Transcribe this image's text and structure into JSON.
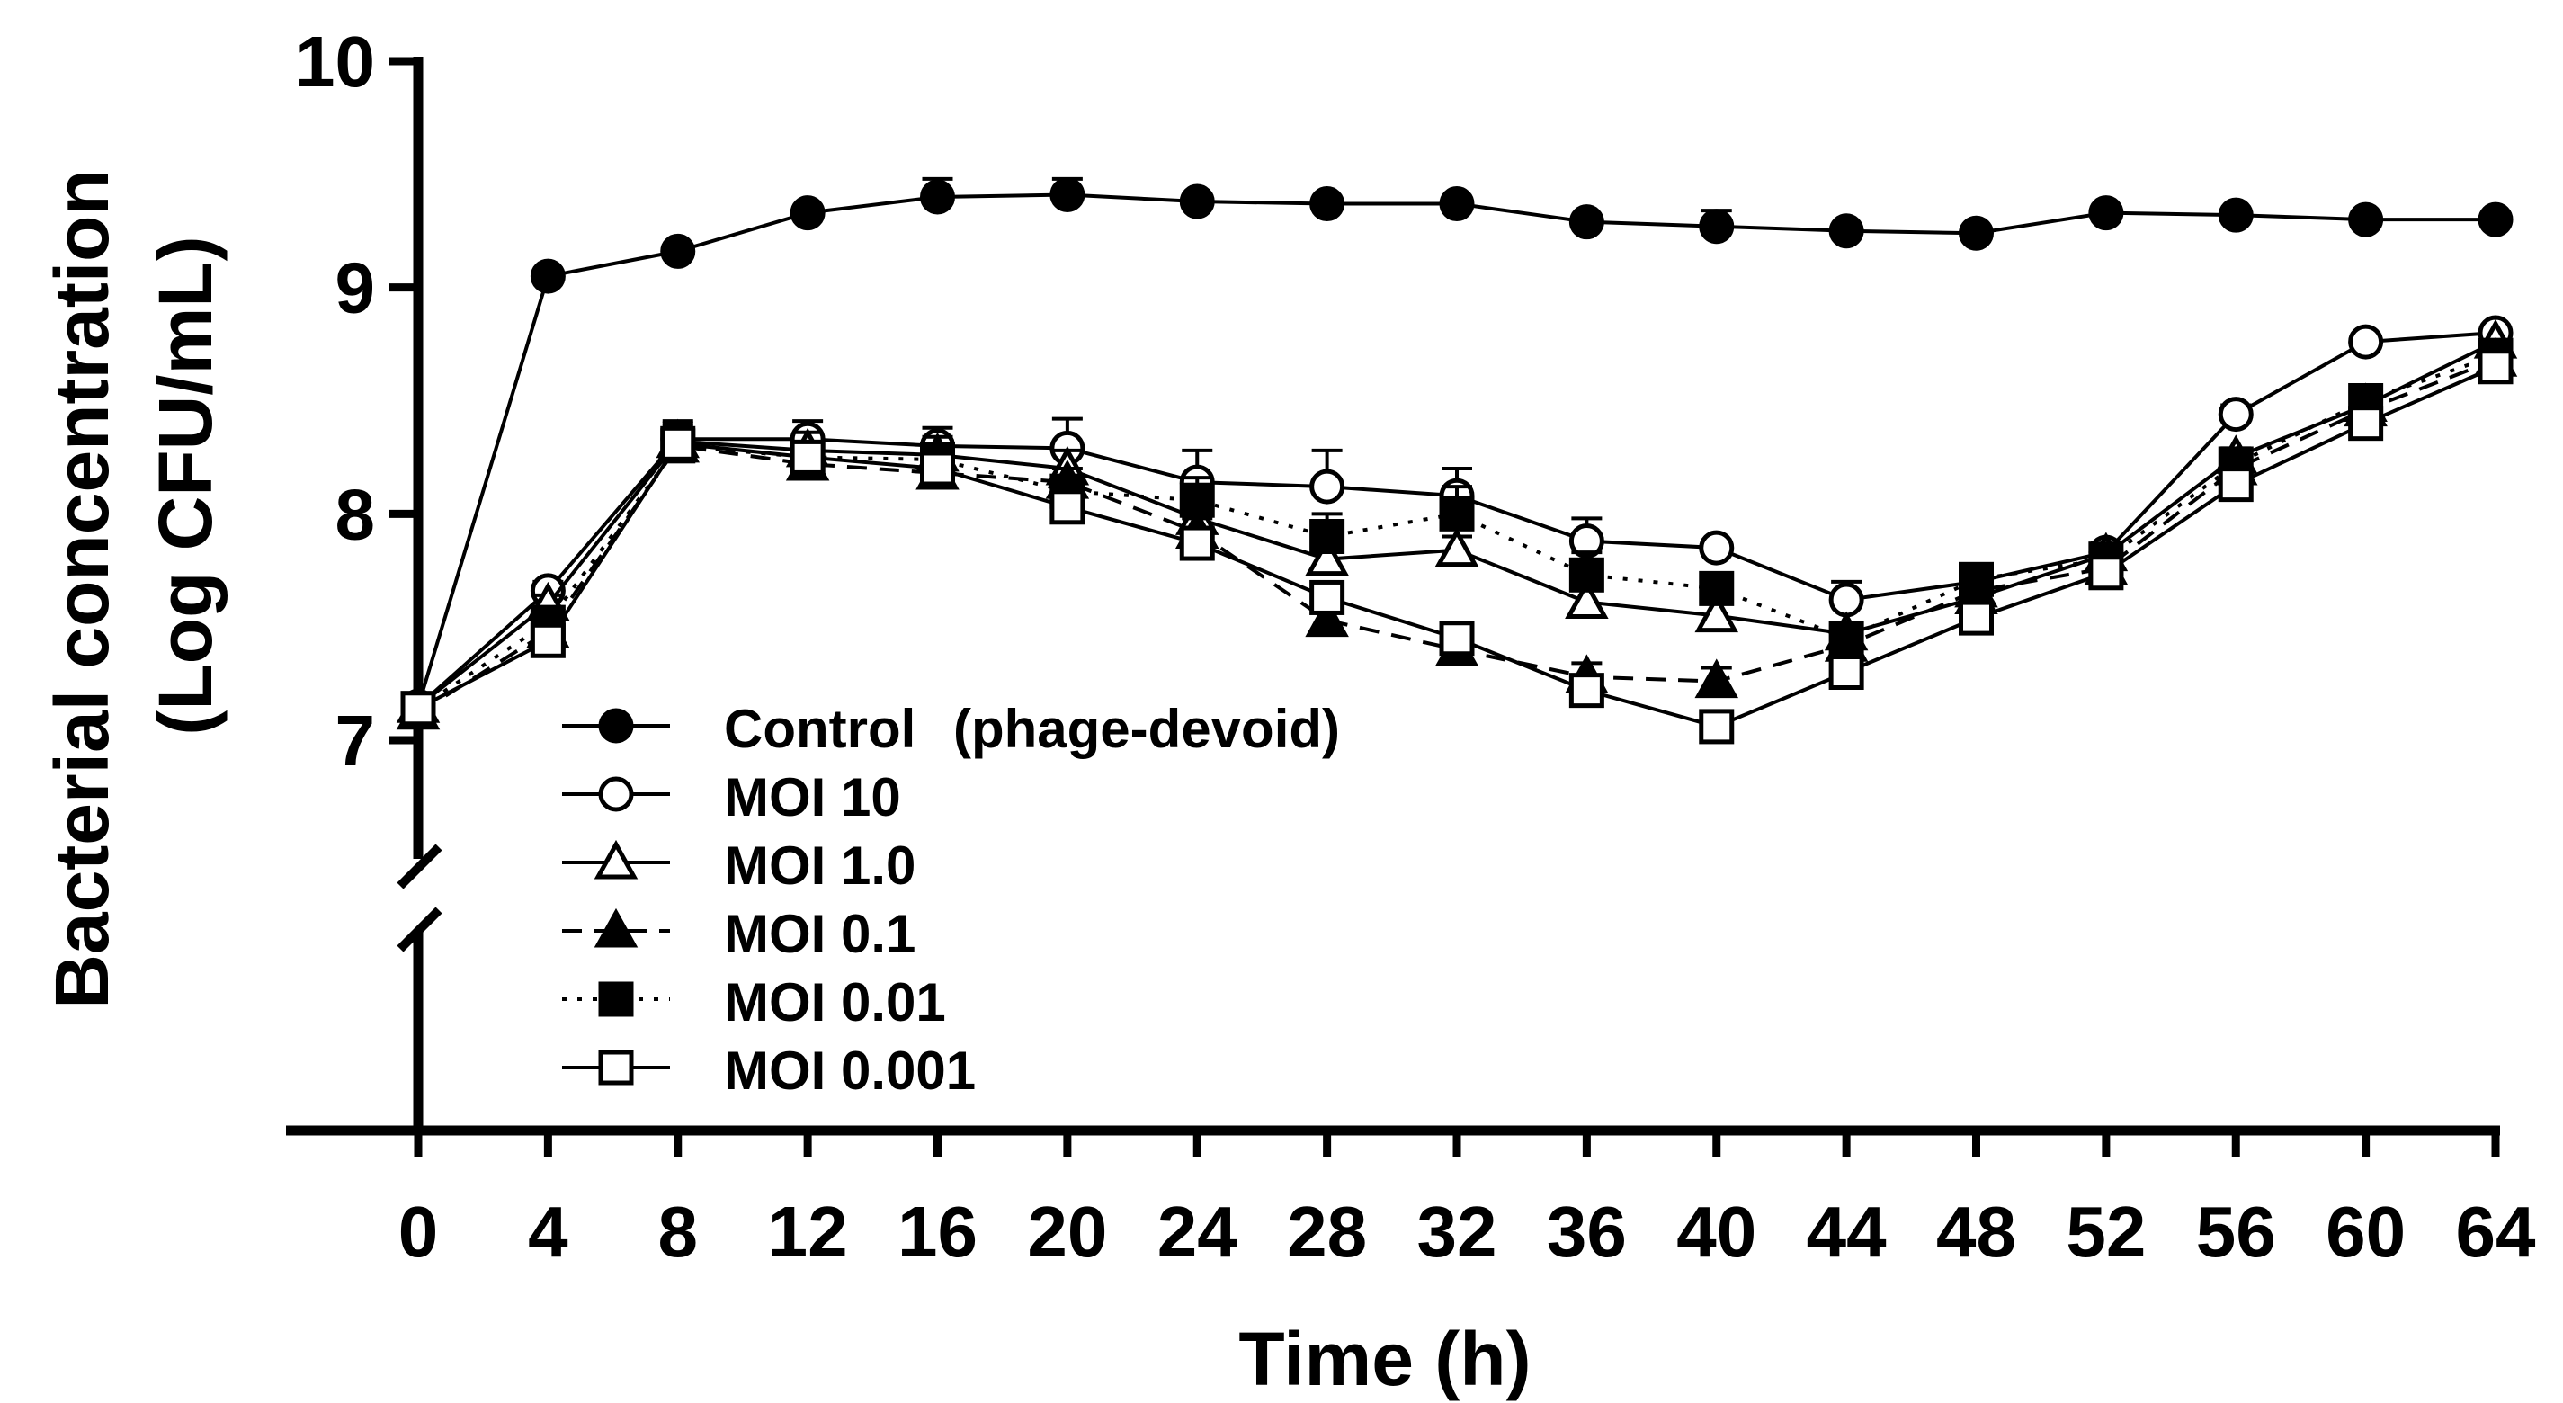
{
  "chart_data": {
    "type": "line",
    "title": "",
    "xlabel": "Time (h)",
    "ylabel_line1": "Bacterial concentration",
    "ylabel_line2": "(Log CFU/mL)",
    "xlim": [
      0,
      64
    ],
    "ylim": [
      7,
      10
    ],
    "axis_break": "below 7",
    "x_ticks": [
      "0",
      "4",
      "8",
      "12",
      "16",
      "20",
      "24",
      "28",
      "32",
      "36",
      "40",
      "44",
      "48",
      "52",
      "56",
      "60",
      "64"
    ],
    "y_ticks": [
      "7",
      "8",
      "9",
      "10"
    ],
    "legend_position": "lower-left",
    "x": [
      0,
      4,
      8,
      12,
      16,
      20,
      24,
      28,
      32,
      36,
      40,
      44,
      48,
      52,
      56,
      60,
      64
    ],
    "series": [
      {
        "name": "Control",
        "label_note": "(phage-devoid)",
        "marker": "filled-circle",
        "dash": "solid",
        "values": [
          7.15,
          9.05,
          9.16,
          9.33,
          9.4,
          9.41,
          9.38,
          9.37,
          9.37,
          9.29,
          9.27,
          9.25,
          9.24,
          9.33,
          9.32,
          9.3,
          9.3
        ],
        "errors": [
          0.04,
          0.03,
          0.03,
          0.03,
          0.08,
          0.07,
          0.03,
          0.03,
          0.03,
          0.03,
          0.07,
          0.03,
          0.03,
          0.03,
          0.03,
          0.03,
          0.03
        ]
      },
      {
        "name": "MOI 10",
        "label_note": "",
        "marker": "open-circle",
        "dash": "solid",
        "values": [
          7.15,
          7.66,
          8.33,
          8.33,
          8.3,
          8.29,
          8.14,
          8.12,
          8.08,
          7.88,
          7.85,
          7.62,
          7.7,
          7.83,
          8.44,
          8.76,
          8.8
        ],
        "errors": [
          0.04,
          0.04,
          0.08,
          0.08,
          0.08,
          0.13,
          0.14,
          0.16,
          0.12,
          0.1,
          0.03,
          0.08,
          0.05,
          0.04,
          0.04,
          0.03,
          0.03
        ]
      },
      {
        "name": "MOI 1.0",
        "label_note": "",
        "marker": "open-triangle",
        "dash": "solid",
        "values": [
          7.15,
          7.6,
          8.32,
          8.28,
          8.26,
          8.2,
          7.98,
          7.8,
          7.84,
          7.61,
          7.55,
          7.47,
          7.63,
          7.82,
          8.25,
          8.48,
          8.76
        ],
        "errors": [
          0.04,
          0.04,
          0.08,
          0.08,
          0.08,
          0.08,
          0.08,
          0.08,
          0.06,
          0.08,
          0.06,
          0.04,
          0.04,
          0.04,
          0.04,
          0.03,
          0.03
        ]
      },
      {
        "name": "MOI 0.1",
        "label_note": "",
        "marker": "filled-triangle",
        "dash": "dashed",
        "values": [
          7.12,
          7.48,
          8.3,
          8.22,
          8.18,
          8.14,
          7.92,
          7.53,
          7.4,
          7.28,
          7.26,
          7.42,
          7.66,
          7.76,
          8.2,
          8.46,
          8.68
        ],
        "errors": [
          0.04,
          0.04,
          0.08,
          0.06,
          0.06,
          0.06,
          0.06,
          0.05,
          0.05,
          0.06,
          0.06,
          0.04,
          0.04,
          0.04,
          0.04,
          0.03,
          0.03
        ]
      },
      {
        "name": "MOI 0.01",
        "label_note": "",
        "marker": "filled-square",
        "dash": "dotted",
        "values": [
          7.14,
          7.52,
          8.3,
          8.25,
          8.24,
          8.1,
          8.06,
          7.9,
          8.0,
          7.73,
          7.67,
          7.45,
          7.71,
          7.8,
          8.22,
          8.5,
          8.7
        ],
        "errors": [
          0.04,
          0.04,
          0.08,
          0.06,
          0.06,
          0.06,
          0.1,
          0.1,
          0.12,
          0.1,
          0.04,
          0.04,
          0.06,
          0.04,
          0.04,
          0.03,
          0.03
        ]
      },
      {
        "name": "MOI 0.001",
        "label_note": "",
        "marker": "open-square",
        "dash": "solid",
        "values": [
          7.14,
          7.44,
          8.31,
          8.25,
          8.2,
          8.03,
          7.87,
          7.63,
          7.45,
          7.22,
          7.06,
          7.3,
          7.54,
          7.74,
          8.13,
          8.4,
          8.65
        ],
        "errors": [
          0.04,
          0.04,
          0.08,
          0.06,
          0.06,
          0.06,
          0.06,
          0.05,
          0.05,
          0.04,
          0.03,
          0.04,
          0.04,
          0.04,
          0.04,
          0.03,
          0.03
        ]
      }
    ]
  }
}
